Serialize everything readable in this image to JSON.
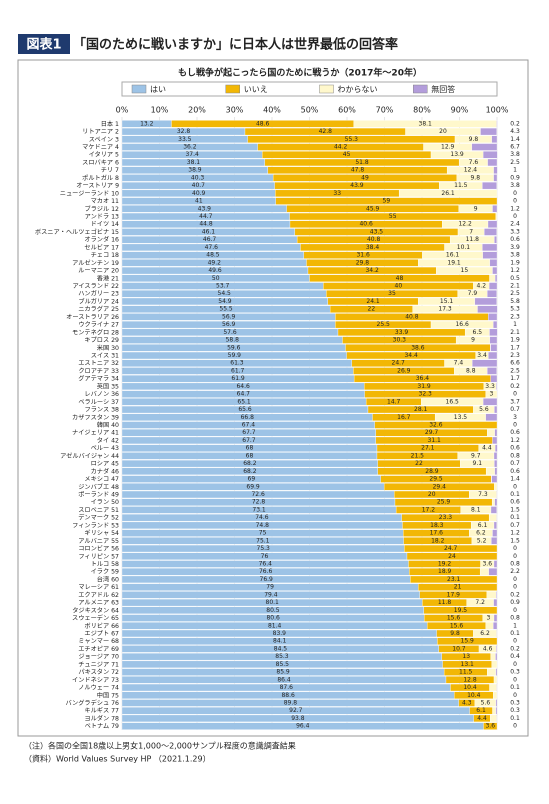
{
  "header": {
    "label": "図表1",
    "title": "「国のために戦いますか」に日本人は世界最低の回答率"
  },
  "notes": [
    "（注）各国の全国18歳以上男女1,000～2,000サンプル程度の意識調査結果",
    "（資料）World Values Survey HP （2021.1.29）"
  ],
  "chart_data": {
    "type": "stacked-bar-horizontal",
    "title": "もし戦争が起こったら国のために戦うか（2017年～20年）",
    "xlim": [
      0,
      100
    ],
    "xticks": [
      {
        "value": 0,
        "label": "0%"
      },
      {
        "value": 10,
        "label": "10%"
      },
      {
        "value": 20,
        "label": "20%"
      },
      {
        "value": 30,
        "label": "30%"
      },
      {
        "value": 40,
        "label": "40%"
      },
      {
        "value": 50,
        "label": "50%"
      },
      {
        "value": 60,
        "label": "60%"
      },
      {
        "value": 70,
        "label": "70%"
      },
      {
        "value": 80,
        "label": "80%"
      },
      {
        "value": 90,
        "label": "90%"
      },
      {
        "value": 100,
        "label": "100%"
      }
    ],
    "grid": true,
    "categories": [
      "日本 1",
      "リトアニア 2",
      "スペイン 3",
      "マケドニア 4",
      "イタリア 5",
      "スロバキア 6",
      "チリ 7",
      "ポルトガル 8",
      "オーストリア 9",
      "ニュージーランド 10",
      "マカオ 11",
      "ブラジル 12",
      "アンドラ 13",
      "ドイツ 14",
      "ボスニア・ヘルツェゴビナ 15",
      "オランダ 16",
      "セルビア 17",
      "チェコ 18",
      "アルゼンチン 19",
      "ルーマニア 20",
      "香港 21",
      "アイスランド 22",
      "ハンガリー 23",
      "ブルガリア 24",
      "ニカラグア 25",
      "オーストラリア 26",
      "ウクライナ 27",
      "モンテネグロ 28",
      "キプロス 29",
      "米国 30",
      "スイス 31",
      "エストニア 32",
      "クロアチア 33",
      "グアテマラ 34",
      "英国 35",
      "レバノン 36",
      "ベラルーシ 37",
      "フランス 38",
      "カザフスタン 39",
      "韓国 40",
      "ナイジェリア 41",
      "タイ 42",
      "ペルー 43",
      "アゼルバイジャン 44",
      "ロシア 45",
      "カナダ 46",
      "メキシコ 47",
      "ジンバブエ 48",
      "ポーランド 49",
      "イラン 50",
      "スロベニア 51",
      "デンマーク 52",
      "フィンランド 53",
      "ギリシャ 54",
      "アルバニア 55",
      "コロンビア 56",
      "フィリピン 57",
      "トルコ 58",
      "イラク 59",
      "台湾 60",
      "マレーシア 61",
      "エクアドル 62",
      "アルメニア 63",
      "タジキスタン 64",
      "スウェーデン 65",
      "ボリビア 66",
      "エジプト 67",
      "ミャンマー 68",
      "エチオピア 69",
      "ジョージア 70",
      "チュニジア 71",
      "パキスタン 72",
      "インドネシア 73",
      "ノルウェー 74",
      "中国 75",
      "バングラデシュ 76",
      "キルギス 77",
      "ヨルダン 78",
      "ベトナム 79"
    ],
    "series": [
      {
        "name": "はい",
        "color": "#9dc3e6",
        "values": [
          13.2,
          32.8,
          33.5,
          36.2,
          37.4,
          38.1,
          38.9,
          40.3,
          40.7,
          40.9,
          41.0,
          43.9,
          44.7,
          44.8,
          46.1,
          46.7,
          47.6,
          48.5,
          49.2,
          49.6,
          50.0,
          53.7,
          54.5,
          54.9,
          55.5,
          56.9,
          56.9,
          57.6,
          58.8,
          59.6,
          59.9,
          61.3,
          61.7,
          61.9,
          64.6,
          64.7,
          65.1,
          65.6,
          66.8,
          67.4,
          67.7,
          67.7,
          68.0,
          68.0,
          68.2,
          68.2,
          69.0,
          69.9,
          72.6,
          72.8,
          73.1,
          74.6,
          74.8,
          75.0,
          75.1,
          75.3,
          76.0,
          76.4,
          76.6,
          76.9,
          79.0,
          79.4,
          80.1,
          80.5,
          80.6,
          81.4,
          83.9,
          84.1,
          84.5,
          85.3,
          85.5,
          85.9,
          86.4,
          87.6,
          88.6,
          89.8,
          92.7,
          93.8,
          96.4
        ]
      },
      {
        "name": "いいえ",
        "color": "#f2b705",
        "values": [
          48.6,
          42.8,
          55.3,
          44.2,
          45.0,
          51.8,
          47.8,
          49.0,
          43.9,
          33.0,
          59.0,
          45.9,
          55.0,
          40.6,
          43.5,
          40.8,
          38.4,
          31.6,
          29.8,
          34.2,
          48.0,
          40.0,
          35.0,
          24.1,
          22.0,
          40.8,
          25.5,
          33.9,
          30.3,
          38.6,
          34.4,
          24.7,
          26.9,
          36.4,
          31.9,
          32.3,
          14.7,
          28.1,
          16.7,
          32.6,
          29.7,
          31.1,
          27.1,
          21.5,
          22.0,
          28.9,
          29.5,
          29.4,
          20.0,
          25.9,
          17.2,
          23.3,
          18.3,
          17.6,
          18.2,
          24.7,
          24.0,
          19.2,
          18.9,
          23.1,
          21.0,
          17.9,
          11.8,
          19.5,
          15.6,
          15.6,
          9.8,
          15.9,
          10.7,
          13.0,
          13.1,
          11.5,
          12.8,
          10.4,
          10.4,
          4.3,
          6.1,
          4.4,
          3.6
        ]
      },
      {
        "name": "わからない",
        "color": "#fff8cc",
        "values": [
          38.1,
          20.0,
          9.8,
          12.9,
          13.9,
          7.6,
          12.4,
          9.8,
          11.5,
          26.1,
          0.0,
          9.0,
          0.3,
          12.2,
          7.0,
          11.8,
          10.1,
          16.1,
          19.1,
          15.0,
          1.5,
          4.2,
          7.9,
          15.1,
          17.3,
          0.0,
          16.6,
          6.5,
          9.0,
          0.1,
          3.4,
          7.4,
          8.8,
          0.0,
          3.3,
          3.0,
          16.5,
          5.6,
          13.5,
          0.0,
          2.0,
          0.0,
          4.4,
          9.7,
          9.1,
          2.3,
          0.1,
          0.7,
          7.3,
          0.7,
          8.1,
          2.0,
          6.1,
          6.2,
          5.2,
          0.0,
          0.0,
          3.6,
          2.3,
          0.0,
          0.0,
          2.5,
          7.2,
          0.0,
          3.0,
          2.0,
          6.2,
          0.0,
          4.6,
          1.3,
          1.4,
          2.3,
          0.8,
          1.9,
          1.0,
          5.6,
          0.9,
          1.7,
          0.0
        ]
      },
      {
        "name": "無回答",
        "color": "#b39ddb",
        "values": [
          0.2,
          4.3,
          1.4,
          6.7,
          3.8,
          2.5,
          1.0,
          0.9,
          3.8,
          0.0,
          0.0,
          1.2,
          0.0,
          2.4,
          3.3,
          0.6,
          3.9,
          3.8,
          1.9,
          1.2,
          0.5,
          2.1,
          2.5,
          5.8,
          5.3,
          2.3,
          1.0,
          2.1,
          1.9,
          1.7,
          2.3,
          6.6,
          2.5,
          1.7,
          0.2,
          0.0,
          3.7,
          0.7,
          3.0,
          0.0,
          0.6,
          1.2,
          0.6,
          0.8,
          0.7,
          0.6,
          1.4,
          0.0,
          0.1,
          0.6,
          1.5,
          0.1,
          0.7,
          1.2,
          1.5,
          0.0,
          0.0,
          0.8,
          2.2,
          0.0,
          0.0,
          0.2,
          0.9,
          0.0,
          0.8,
          1.0,
          0.1,
          0.0,
          0.2,
          0.4,
          0.0,
          0.3,
          0.0,
          0.1,
          0.0,
          0.3,
          0.3,
          0.1,
          0.0
        ]
      }
    ]
  }
}
